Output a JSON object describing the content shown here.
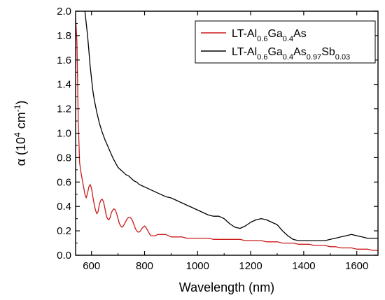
{
  "chart_data": {
    "type": "line",
    "xlabel": "Wavelength (nm)",
    "ylabel_parts": {
      "symbol": "α",
      "open": " (10",
      "exp": "4",
      "unit": " cm",
      "unit_exp": "-1",
      "close": ")"
    },
    "xlim": [
      540,
      1680
    ],
    "ylim": [
      0.0,
      2.0
    ],
    "x_ticks": [
      {
        "value": 600,
        "label": "600"
      },
      {
        "value": 800,
        "label": "800"
      },
      {
        "value": 1000,
        "label": "1000"
      },
      {
        "value": 1200,
        "label": "1200"
      },
      {
        "value": 1400,
        "label": "1400"
      },
      {
        "value": 1600,
        "label": "1600"
      }
    ],
    "y_ticks": [
      {
        "value": 0.0,
        "label": "0.0"
      },
      {
        "value": 0.2,
        "label": "0.2"
      },
      {
        "value": 0.4,
        "label": "0.4"
      },
      {
        "value": 0.6,
        "label": "0.6"
      },
      {
        "value": 0.8,
        "label": "0.8"
      },
      {
        "value": 1.0,
        "label": "1.0"
      },
      {
        "value": 1.2,
        "label": "1.2"
      },
      {
        "value": 1.4,
        "label": "1.4"
      },
      {
        "value": 1.6,
        "label": "1.6"
      },
      {
        "value": 1.8,
        "label": "1.8"
      },
      {
        "value": 2.0,
        "label": "2.0"
      }
    ],
    "grid": false,
    "legend_position": "top-right",
    "series": [
      {
        "name": "LT-Al0.6Ga0.4As",
        "legend_parts": [
          {
            "text": "LT-Al",
            "sub": false
          },
          {
            "text": "0.6",
            "sub": true
          },
          {
            "text": "Ga",
            "sub": false
          },
          {
            "text": "0.4",
            "sub": true
          },
          {
            "text": "As",
            "sub": false
          }
        ],
        "color": "#cc1a1a",
        "x": [
          540,
          545,
          550,
          555,
          560,
          565,
          570,
          575,
          580,
          585,
          590,
          595,
          600,
          605,
          610,
          615,
          620,
          625,
          630,
          635,
          640,
          645,
          650,
          655,
          660,
          665,
          670,
          675,
          680,
          685,
          690,
          695,
          700,
          705,
          710,
          715,
          720,
          725,
          730,
          735,
          740,
          745,
          750,
          755,
          760,
          765,
          770,
          775,
          780,
          785,
          790,
          795,
          800,
          805,
          810,
          815,
          820,
          825,
          830,
          840,
          850,
          860,
          870,
          880,
          890,
          900,
          910,
          920,
          940,
          960,
          980,
          1000,
          1020,
          1040,
          1060,
          1080,
          1100,
          1120,
          1140,
          1160,
          1180,
          1200,
          1220,
          1240,
          1260,
          1280,
          1300,
          1320,
          1340,
          1360,
          1380,
          1400,
          1420,
          1440,
          1460,
          1480,
          1500,
          1520,
          1540,
          1560,
          1580,
          1600,
          1620,
          1640,
          1660,
          1680
        ],
        "y": [
          1.95,
          1.75,
          1.1,
          0.76,
          0.68,
          0.62,
          0.56,
          0.5,
          0.47,
          0.51,
          0.56,
          0.58,
          0.55,
          0.48,
          0.42,
          0.37,
          0.34,
          0.36,
          0.42,
          0.45,
          0.46,
          0.44,
          0.39,
          0.33,
          0.3,
          0.29,
          0.31,
          0.35,
          0.37,
          0.38,
          0.37,
          0.34,
          0.3,
          0.26,
          0.24,
          0.23,
          0.24,
          0.26,
          0.28,
          0.3,
          0.31,
          0.31,
          0.3,
          0.28,
          0.25,
          0.22,
          0.2,
          0.19,
          0.19,
          0.2,
          0.22,
          0.23,
          0.24,
          0.23,
          0.21,
          0.19,
          0.17,
          0.16,
          0.16,
          0.16,
          0.17,
          0.17,
          0.17,
          0.17,
          0.16,
          0.15,
          0.15,
          0.15,
          0.15,
          0.14,
          0.14,
          0.14,
          0.14,
          0.14,
          0.13,
          0.13,
          0.13,
          0.13,
          0.13,
          0.13,
          0.12,
          0.12,
          0.12,
          0.12,
          0.11,
          0.11,
          0.11,
          0.1,
          0.1,
          0.1,
          0.09,
          0.09,
          0.09,
          0.08,
          0.08,
          0.08,
          0.07,
          0.07,
          0.06,
          0.06,
          0.06,
          0.05,
          0.05,
          0.05,
          0.04,
          0.04
        ]
      },
      {
        "name": "LT-Al0.6Ga0.4As0.97Sb0.03",
        "legend_parts": [
          {
            "text": "LT-Al",
            "sub": false
          },
          {
            "text": "0.6",
            "sub": true
          },
          {
            "text": "Ga",
            "sub": false
          },
          {
            "text": "0.4",
            "sub": true
          },
          {
            "text": "As",
            "sub": false
          },
          {
            "text": "0.97",
            "sub": true
          },
          {
            "text": "Sb",
            "sub": false
          },
          {
            "text": "0.03",
            "sub": true
          }
        ],
        "color": "#000000",
        "x": [
          575,
          580,
          585,
          590,
          595,
          600,
          605,
          610,
          620,
          630,
          640,
          650,
          660,
          670,
          680,
          690,
          700,
          710,
          720,
          730,
          740,
          750,
          760,
          770,
          780,
          790,
          800,
          820,
          840,
          860,
          880,
          900,
          920,
          940,
          960,
          980,
          1000,
          1020,
          1040,
          1060,
          1080,
          1100,
          1120,
          1140,
          1160,
          1180,
          1200,
          1220,
          1240,
          1260,
          1280,
          1300,
          1320,
          1340,
          1360,
          1380,
          1400,
          1420,
          1440,
          1460,
          1480,
          1500,
          1520,
          1540,
          1560,
          1580,
          1600,
          1620,
          1640,
          1660,
          1680
        ],
        "y": [
          2.0,
          1.9,
          1.8,
          1.68,
          1.55,
          1.45,
          1.35,
          1.28,
          1.17,
          1.08,
          1.01,
          0.95,
          0.9,
          0.85,
          0.8,
          0.76,
          0.72,
          0.7,
          0.68,
          0.66,
          0.65,
          0.63,
          0.61,
          0.6,
          0.58,
          0.57,
          0.56,
          0.54,
          0.52,
          0.5,
          0.48,
          0.47,
          0.45,
          0.43,
          0.41,
          0.39,
          0.37,
          0.35,
          0.33,
          0.32,
          0.32,
          0.3,
          0.26,
          0.23,
          0.22,
          0.24,
          0.27,
          0.29,
          0.3,
          0.29,
          0.27,
          0.25,
          0.2,
          0.16,
          0.13,
          0.12,
          0.12,
          0.12,
          0.12,
          0.12,
          0.12,
          0.13,
          0.14,
          0.15,
          0.16,
          0.17,
          0.16,
          0.15,
          0.14,
          0.14,
          0.14
        ]
      }
    ]
  }
}
